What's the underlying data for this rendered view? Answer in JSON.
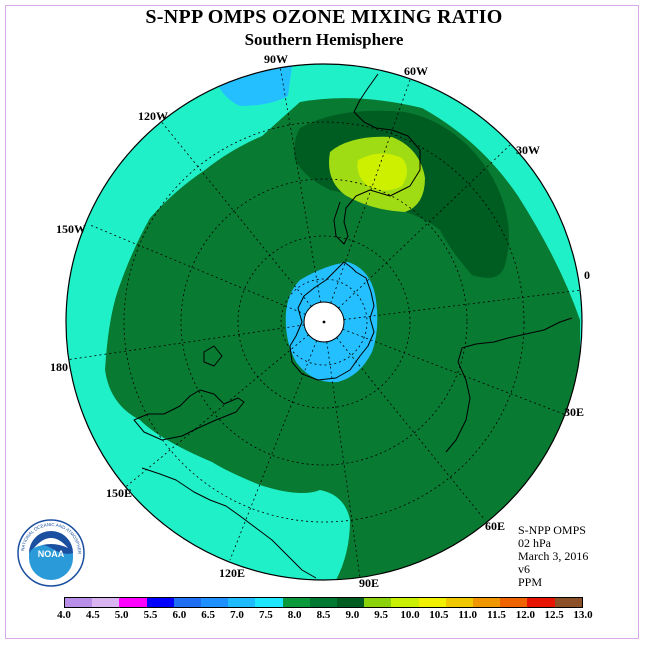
{
  "header": {
    "title": "S-NPP OMPS OZONE MIXING RATIO",
    "subtitle": "Southern Hemisphere"
  },
  "longitude_labels": [
    "90W",
    "60W",
    "30W",
    "0",
    "30E",
    "60E",
    "90E",
    "120E",
    "150E",
    "180",
    "150W",
    "120W"
  ],
  "info": {
    "instrument": "S-NPP OMPS",
    "level": "02 hPa",
    "date": "March 3, 2016",
    "version": "v6",
    "units": "PPM"
  },
  "logo": {
    "text": "NOAA",
    "ring_text": "NATIONAL OCEANIC AND ATMOSPHERIC ADMINISTRATION"
  },
  "colorbar": {
    "ticks": [
      "4.0",
      "4.5",
      "5.0",
      "5.5",
      "6.0",
      "6.5",
      "7.0",
      "7.5",
      "8.0",
      "8.5",
      "9.0",
      "9.5",
      "10.0",
      "10.5",
      "11.0",
      "11.5",
      "12.0",
      "12.5",
      "13.0"
    ],
    "colors": [
      "#b98ee8",
      "#d8b4f0",
      "#ff00ff",
      "#0000ff",
      "#1e6ff2",
      "#1e90ff",
      "#1ebcff",
      "#1ee6ff",
      "#0a9a3c",
      "#007a32",
      "#005d22",
      "#8cd20a",
      "#c8f000",
      "#f0f000",
      "#f0c800",
      "#f09600",
      "#f06400",
      "#e61400",
      "#8c5028"
    ]
  },
  "palette": {
    "mid_cyan": "#20f0c8",
    "light_blue": "#23bfff",
    "green": "#087a32",
    "dark_green": "#005d22",
    "yellow_green": "#a0dc14",
    "lime": "#ccf000"
  }
}
